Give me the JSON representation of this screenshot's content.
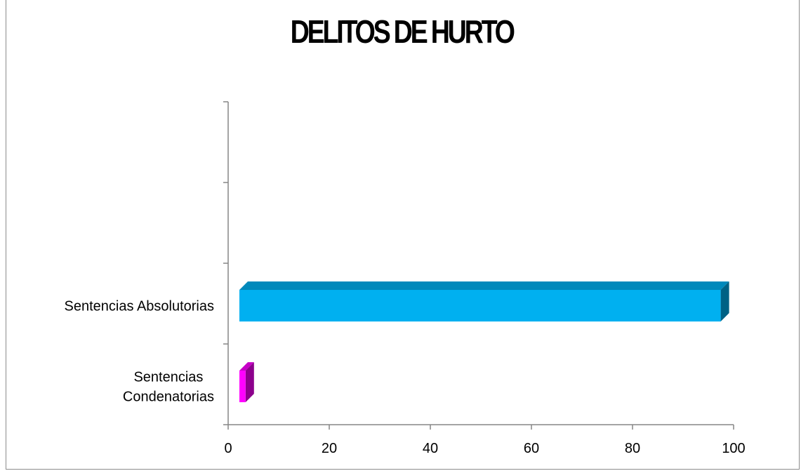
{
  "chart_data": {
    "type": "bar",
    "orientation": "horizontal",
    "title": "DELITOS DE HURTO",
    "categories": [
      "Sentencias Condenatorias",
      "Sentencias Absolutorias"
    ],
    "category_lines": [
      [
        "Sentencias",
        "Condenatorias"
      ],
      [
        "Sentencias Absolutorias"
      ]
    ],
    "values": [
      4,
      98
    ],
    "bar_colors": [
      "#FF00FF",
      "#00B0F0"
    ],
    "xlim": [
      0,
      100
    ],
    "x_ticks": [
      0,
      20,
      40,
      60,
      80,
      100
    ],
    "category_slots": 4,
    "grid": false,
    "legend": "none",
    "style": "3d"
  }
}
